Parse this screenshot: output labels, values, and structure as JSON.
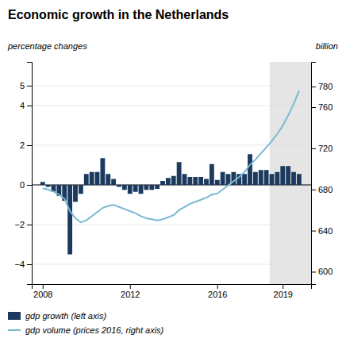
{
  "chart_data": {
    "type": "bar",
    "title": "Economic growth in the Netherlands",
    "ylabel": "percentage changes",
    "y2label": "billion",
    "x": [
      2008.0,
      2008.25,
      2008.5,
      2008.75,
      2009.0,
      2009.25,
      2009.5,
      2009.75,
      2010.0,
      2010.25,
      2010.5,
      2010.75,
      2011.0,
      2011.25,
      2011.5,
      2011.75,
      2012.0,
      2012.25,
      2012.5,
      2012.75,
      2013.0,
      2013.25,
      2013.5,
      2013.75,
      2014.0,
      2014.25,
      2014.5,
      2014.75,
      2015.0,
      2015.25,
      2015.5,
      2015.75,
      2016.0,
      2016.25,
      2016.5,
      2016.75,
      2017.0,
      2017.25,
      2017.5,
      2017.75,
      2018.0,
      2018.25,
      2018.5,
      2018.75,
      2019.0,
      2019.25,
      2019.5,
      2019.75
    ],
    "series": [
      {
        "name": "gdp growth (left axis)",
        "type": "bar",
        "color": "#1b3a5e",
        "values": [
          0.15,
          -0.1,
          -0.35,
          -0.55,
          -0.8,
          -3.5,
          -0.85,
          -0.45,
          0.55,
          0.65,
          0.65,
          1.35,
          0.55,
          0.3,
          -0.1,
          -0.25,
          -0.45,
          -0.35,
          -0.45,
          -0.25,
          -0.25,
          -0.2,
          0.2,
          0.35,
          0.45,
          1.15,
          0.55,
          0.4,
          0.4,
          0.4,
          0.3,
          1.05,
          0.25,
          0.65,
          0.55,
          0.65,
          0.55,
          0.55,
          1.55,
          0.65,
          0.75,
          0.75,
          0.55,
          0.65,
          0.95,
          0.95,
          0.65,
          0.55
        ]
      },
      {
        "name": "gdp volume (prices 2016, right axis)",
        "type": "line",
        "axis": "y2",
        "color": "#7ab8d4",
        "values": [
          681,
          680,
          678,
          675,
          671,
          659,
          652,
          648,
          650,
          654,
          658,
          662,
          664,
          665,
          663,
          661,
          659,
          657,
          654,
          652,
          651,
          650,
          651,
          653,
          655,
          660,
          663,
          666,
          668,
          670,
          672,
          675,
          676,
          680,
          684,
          688,
          692,
          697,
          704,
          709,
          715,
          721,
          727,
          734,
          742,
          752,
          763,
          776
        ]
      }
    ],
    "bands": [
      {
        "x": [
          2018.4,
          2020.3
        ],
        "color": "#e5e5e5"
      }
    ],
    "xlim": [
      2007.5,
      2020.3
    ],
    "xticks": [
      2008,
      2012,
      2016,
      2019
    ],
    "ylim": [
      -5.0,
      6.2
    ],
    "yticks": [
      {
        "value": -4,
        "label": "−4"
      },
      {
        "value": -2,
        "label": "−2"
      },
      0,
      2,
      4,
      5
    ],
    "y2lim": [
      588,
      804
    ],
    "y2ticks": [
      600,
      640,
      680,
      720,
      760,
      780
    ],
    "grid": true,
    "legend": "bottom"
  }
}
